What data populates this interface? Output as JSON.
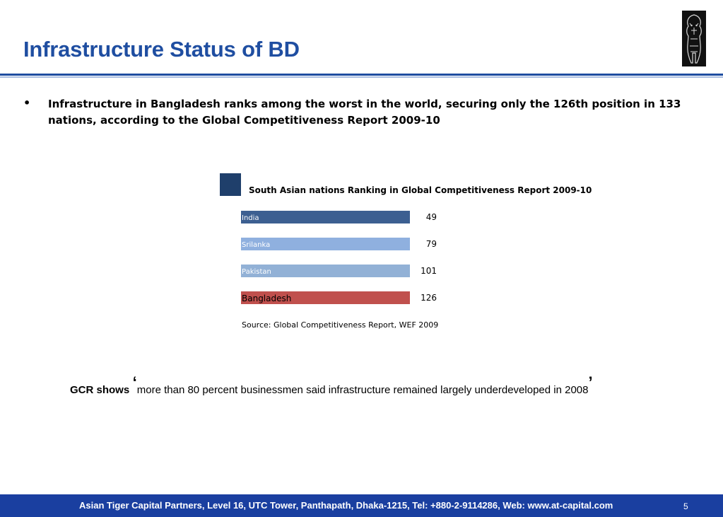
{
  "slide": {
    "title": "Infrastructure Status of BD",
    "bullet_marker": "•",
    "bullet": "Infrastructure in Bangladesh ranks among the worst in the world, securing only the 126th position in 133 nations, according to the Global Competitiveness Report 2009-10",
    "quote_lead": "GCR shows",
    "quote_open": "‘",
    "quote_text": "more than 80 percent businessmen said infrastructure remained largely underdeveloped in 2008",
    "quote_close": "’",
    "source": "Source: Global Competitiveness Report, WEF 2009",
    "logo_icon": "tiger-logo-icon"
  },
  "footer": {
    "text": "Asian Tiger Capital Partners, Level 16, UTC Tower, Panthapath, Dhaka-1215,  Tel: +880-2-9114286,  Web: www.at-capital.com",
    "page": "5"
  },
  "colors": {
    "title": "#1f4ea1",
    "footer": "#1a3fa0",
    "india": "#3c5f91",
    "srilanka": "#8fb0df",
    "pakistan": "#92b1d6",
    "bangladesh": "#c0504d"
  },
  "chart_data": {
    "type": "bar",
    "orientation": "horizontal",
    "title": "South Asian nations Ranking in Global Competitiveness Report 2009-10",
    "categories": [
      "India",
      "Srilanka",
      "Pakistan",
      "Bangladesh"
    ],
    "values": [
      49,
      79,
      101,
      126
    ],
    "value_labels": [
      "49",
      "79",
      "101",
      "126"
    ],
    "bar_colors": [
      "#3c5f91",
      "#8fb0df",
      "#92b1d6",
      "#c0504d"
    ],
    "label_colors": [
      "#ffffff",
      "#ffffff",
      "#ffffff",
      "#000000"
    ],
    "label_sizes": [
      "small",
      "small",
      "small",
      "large"
    ],
    "grid": false,
    "legend": "none"
  }
}
